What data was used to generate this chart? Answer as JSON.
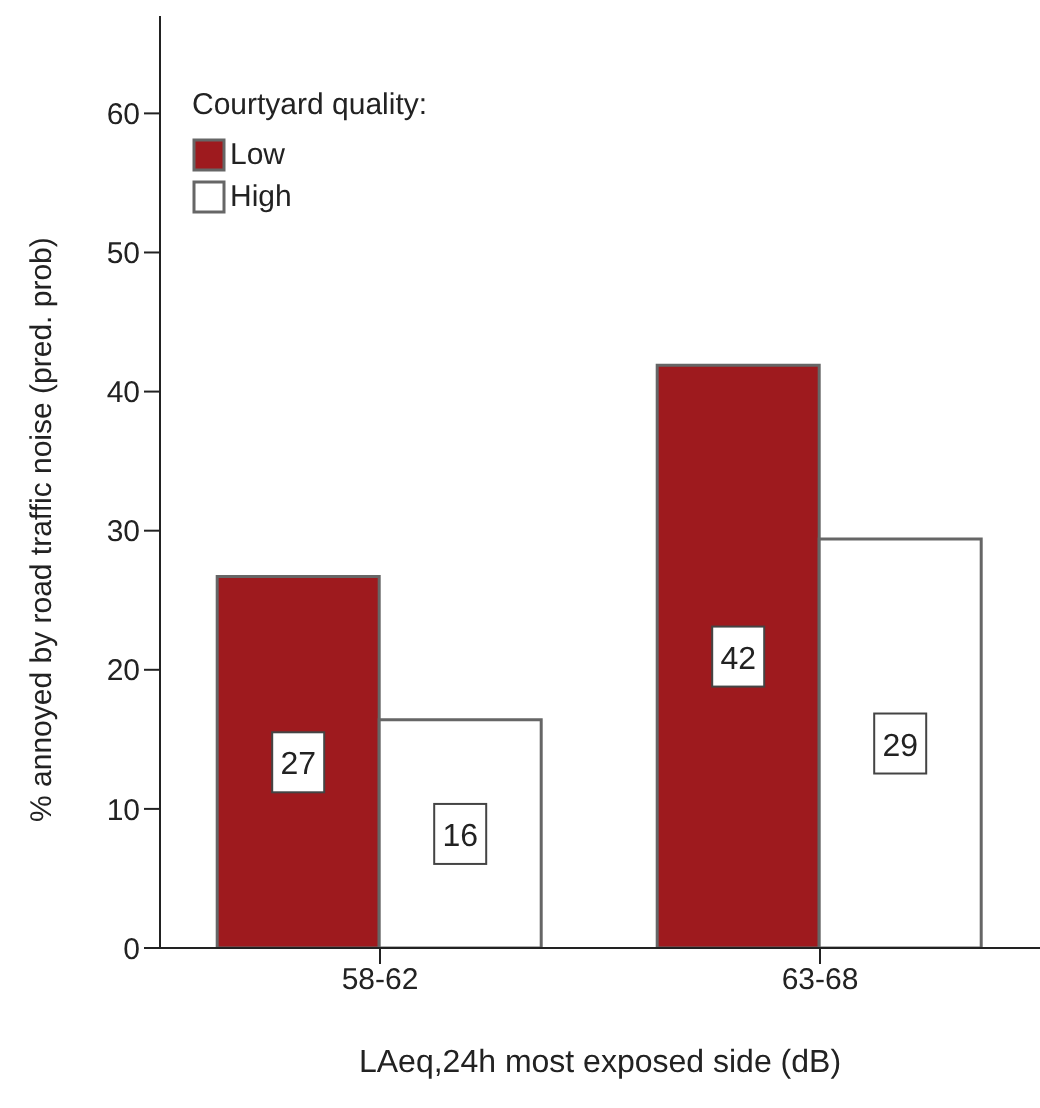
{
  "chart_data": {
    "type": "bar",
    "categories": [
      "58-62",
      "63-68"
    ],
    "xlabel": "LAeq,24h most exposed side (dB)",
    "ylabel": "% annoyed by road traffic noise (pred. prob)",
    "legend_title": "Courtyard quality:",
    "series": [
      {
        "name": "Low",
        "color": "#9e1a1e",
        "values": [
          26.7,
          41.9
        ],
        "value_labels": [
          "27",
          "42"
        ]
      },
      {
        "name": "High",
        "color": "#ffffff",
        "values": [
          16.4,
          29.4
        ],
        "value_labels": [
          "16",
          "29"
        ]
      }
    ],
    "ylim": [
      0,
      67
    ],
    "yticks": [
      0,
      10,
      20,
      30,
      40,
      50,
      60
    ],
    "grid": false,
    "legend": "top left"
  }
}
